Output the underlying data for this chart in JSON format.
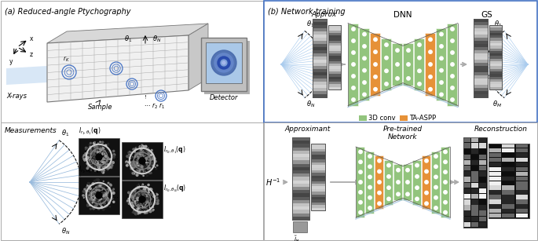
{
  "panel_a_title": "(a) Reduced-angle Ptychography",
  "panel_b_title": "(b) Network training",
  "panel_b_border_color": "#4472c4",
  "background_color": "#ffffff",
  "label_color_3dconv": "#92c47d",
  "label_color_taaspp": "#e69138",
  "text_3dconv": "3D conv",
  "text_taaspp": "TA-ASPP",
  "approx_label": "Approx",
  "dnn_label": "DNN",
  "gs_label": "GS",
  "measurements_label": "Measurements",
  "approximant_label": "Approximant",
  "pretrained_label": "Pre-trained\nNetwork",
  "reconstruction_label": "Reconstruction",
  "xrays_label": "X-rays",
  "sample_label": "Sample",
  "detector_label": "Detector"
}
